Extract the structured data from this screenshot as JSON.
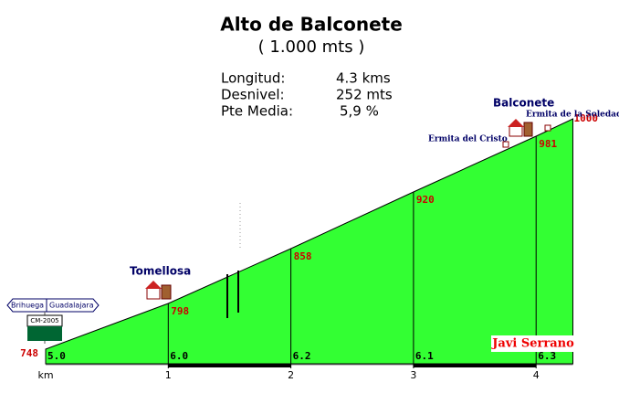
{
  "chart_data": {
    "type": "area",
    "title": "Alto de Balconete",
    "subtitle": "( 1.000 mts )",
    "stats": [
      {
        "label": "Longitud:",
        "value": "4.3 kms"
      },
      {
        "label": "Desnivel:",
        "value": "252 mts"
      },
      {
        "label": "Pte Media:",
        "value": "5,9 %"
      }
    ],
    "x": [
      0,
      1,
      2,
      3,
      4,
      4.3
    ],
    "values": [
      748,
      798,
      858,
      920,
      981,
      1000
    ],
    "gradients": {
      "values": [
        5.0,
        6.0,
        6.2,
        6.1,
        6.3
      ],
      "value_labels": [
        "5.0",
        "6.0",
        "6.2",
        "6.1",
        "6.3"
      ]
    },
    "color": "#33ff33",
    "xlim": [
      0,
      4.3
    ],
    "ylim": [
      732,
      1000
    ],
    "xticks": [
      1,
      2,
      3,
      4
    ],
    "x_label": "km",
    "places": [
      "Tomellosa",
      "Balconete",
      "Ermita del Cristo",
      "Ermita de la Soledad"
    ],
    "road_sign": {
      "left": "Brihuega",
      "right": "Guadalajara",
      "road": "CM-2005"
    },
    "author": "Javi Serrano"
  }
}
